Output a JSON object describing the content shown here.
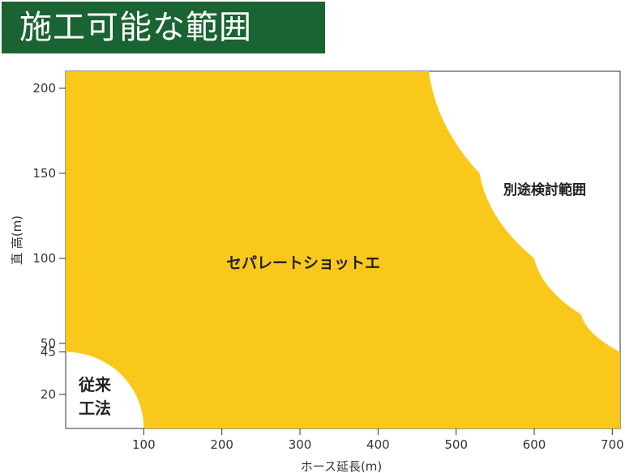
{
  "title": "施工可能な範囲",
  "chart_data": {
    "type": "area",
    "title": "施工可能な範囲",
    "xlabel": "ホース延長(m)",
    "ylabel": "直 高(m)",
    "xlim": [
      0,
      710
    ],
    "ylim": [
      0,
      210
    ],
    "x_ticks": [
      100,
      200,
      300,
      400,
      500,
      600,
      700
    ],
    "y_ticks": [
      20,
      45,
      50,
      100,
      150,
      200
    ],
    "regions": [
      {
        "label": "セパレートショットエ",
        "color": "#fac81a",
        "inner_boundary": {
          "radius_x": 100,
          "radius_y": 45
        },
        "outer_boundary": [
          [
            465,
            210
          ],
          [
            530,
            150
          ],
          [
            600,
            100
          ],
          [
            660,
            67
          ],
          [
            710,
            45
          ]
        ]
      },
      {
        "label": "別途検討範囲",
        "color": "#ffffff"
      },
      {
        "label_lines": [
          "従来",
          "工法"
        ],
        "color": "#ffffff"
      }
    ]
  }
}
